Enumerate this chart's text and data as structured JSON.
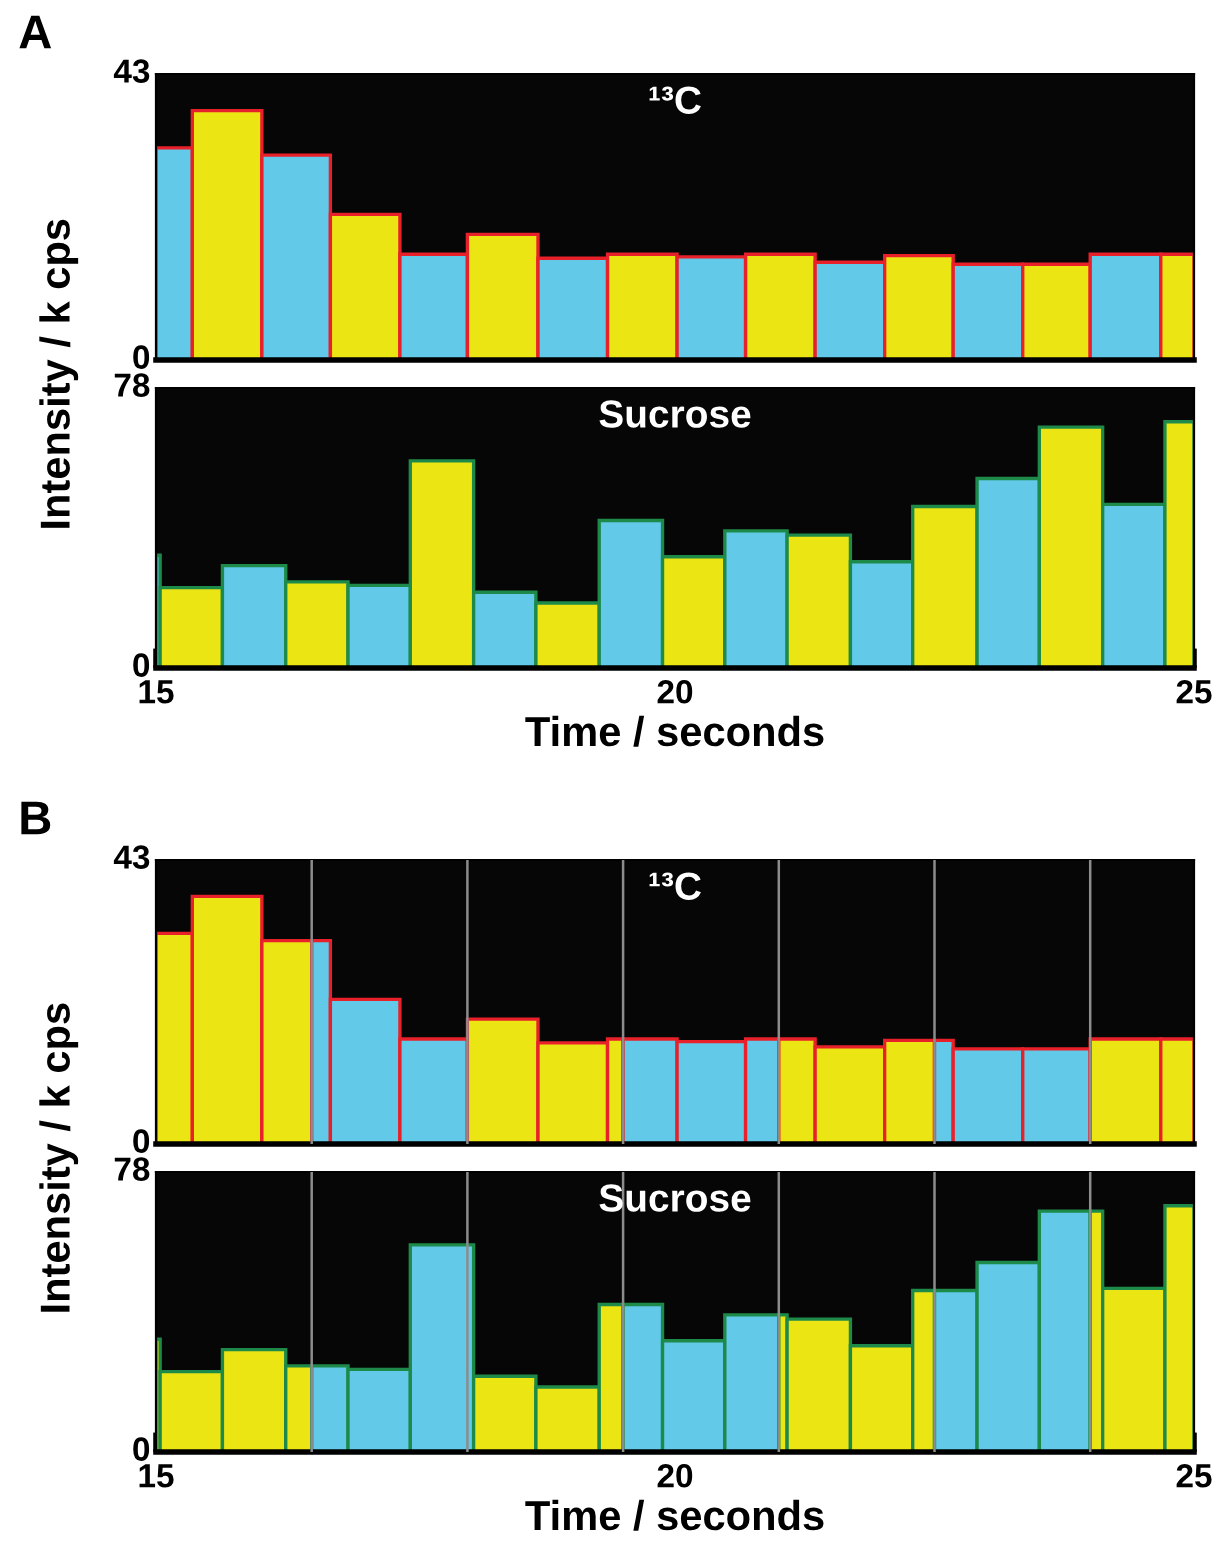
{
  "chart_data": [
    {
      "type": "histogram",
      "title": "A",
      "ylabel": "Intensity / k cps",
      "annotations": [
        "¹³C"
      ],
      "xlim": [
        15,
        25
      ],
      "ylim": [
        0,
        43
      ],
      "yticks": [
        0,
        43
      ],
      "tick_labels": "y",
      "bins": [
        15,
        15.35,
        16.02,
        16.68,
        17.35,
        18.0,
        18.68,
        19.35,
        20.02,
        20.68,
        21.35,
        22.02,
        22.68,
        23.35,
        24.0,
        24.68,
        25
      ],
      "values": [
        31.9,
        37.5,
        30.8,
        21.9,
        15.9,
        18.9,
        15.3,
        15.9,
        15.5,
        15.9,
        14.7,
        15.7,
        14.4,
        14.4,
        15.9,
        15.9
      ],
      "colors": [
        "#62c9e8",
        "#ece514",
        "#62c9e8",
        "#ece514",
        "#62c9e8",
        "#ece514",
        "#62c9e8",
        "#ece514",
        "#62c9e8",
        "#ece514",
        "#62c9e8",
        "#ece514",
        "#62c9e8",
        "#ece514",
        "#62c9e8",
        "#ece514"
      ]
    },
    {
      "type": "histogram",
      "xlabel": "Time / seconds",
      "annotations": [
        "Sucrose"
      ],
      "xlim": [
        15,
        25
      ],
      "xticks": [
        15,
        20,
        25
      ],
      "ylim": [
        0,
        78
      ],
      "yticks": [
        0,
        78
      ],
      "bins": [
        15,
        15.04,
        15.64,
        16.25,
        16.85,
        17.45,
        18.06,
        18.66,
        19.27,
        19.88,
        20.48,
        21.08,
        21.69,
        22.29,
        22.91,
        23.51,
        24.12,
        24.72,
        25
      ],
      "values": [
        31.4,
        22.4,
        28.5,
        24.0,
        23.0,
        57.7,
        21.1,
        18.1,
        41.1,
        31.0,
        38.2,
        37.0,
        29.6,
        45.0,
        52.8,
        67.1,
        45.6,
        68.6
      ],
      "colors": [
        "#62c9e8",
        "#ece514",
        "#62c9e8",
        "#ece514",
        "#62c9e8",
        "#ece514",
        "#62c9e8",
        "#ece514",
        "#62c9e8",
        "#ece514",
        "#62c9e8",
        "#ece514",
        "#62c9e8",
        "#ece514",
        "#62c9e8",
        "#ece514",
        "#62c9e8",
        "#ece514"
      ]
    },
    {
      "type": "histogram",
      "title": "B",
      "ylabel": "Intensity / k cps",
      "annotations": [
        "¹³C"
      ],
      "xlim": [
        15,
        25
      ],
      "ylim": [
        0,
        43
      ],
      "yticks": [
        0,
        43
      ],
      "tick_labels": "y",
      "bins": [
        15,
        15.35,
        16.02,
        16.5,
        16.68,
        17.35,
        18.0,
        18.68,
        19.35,
        19.5,
        20.02,
        20.68,
        21.0,
        21.35,
        22.02,
        22.5,
        22.68,
        23.35,
        24.0,
        24.68,
        25
      ],
      "values": [
        31.9,
        37.5,
        30.8,
        30.8,
        21.9,
        15.9,
        18.9,
        15.3,
        15.9,
        15.9,
        15.5,
        15.9,
        15.9,
        14.7,
        15.7,
        15.7,
        14.4,
        14.4,
        15.9,
        15.9
      ],
      "colors": [
        "#ece514",
        "#ece514",
        "#ece514",
        "#62c9e8",
        "#62c9e8",
        "#62c9e8",
        "#ece514",
        "#ece514",
        "#ece514",
        "#62c9e8",
        "#62c9e8",
        "#62c9e8",
        "#ece514",
        "#ece514",
        "#ece514",
        "#62c9e8",
        "#62c9e8",
        "#62c9e8",
        "#ece514",
        "#ece514"
      ],
      "ref_lines": [
        {
          "axis": "x",
          "value": 16.5,
          "color": "#8c8c8c"
        },
        {
          "axis": "x",
          "value": 18,
          "color": "#8c8c8c"
        },
        {
          "axis": "x",
          "value": 19.5,
          "color": "#8c8c8c"
        },
        {
          "axis": "x",
          "value": 21,
          "color": "#8c8c8c"
        },
        {
          "axis": "x",
          "value": 22.5,
          "color": "#8c8c8c"
        },
        {
          "axis": "x",
          "value": 24,
          "color": "#8c8c8c"
        }
      ]
    },
    {
      "type": "histogram",
      "xlabel": "Time / seconds",
      "annotations": [
        "Sucrose"
      ],
      "xlim": [
        15,
        25
      ],
      "xticks": [
        15,
        20,
        25
      ],
      "ylim": [
        0,
        78
      ],
      "yticks": [
        0,
        78
      ],
      "bins": [
        15,
        15.04,
        15.64,
        16.25,
        16.5,
        16.85,
        17.45,
        18.06,
        18.66,
        19.27,
        19.5,
        19.88,
        20.48,
        21.0,
        21.08,
        21.69,
        22.29,
        22.5,
        22.91,
        23.51,
        24.0,
        24.12,
        24.72,
        25
      ],
      "values": [
        31.4,
        22.4,
        28.5,
        24.0,
        24.0,
        23.0,
        57.7,
        21.1,
        18.1,
        41.1,
        41.1,
        31.0,
        38.2,
        38.2,
        37.0,
        29.6,
        45.0,
        45.0,
        52.8,
        67.1,
        67.1,
        45.6,
        68.6
      ],
      "colors": [
        "#ece514",
        "#ece514",
        "#ece514",
        "#ece514",
        "#62c9e8",
        "#62c9e8",
        "#62c9e8",
        "#ece514",
        "#ece514",
        "#ece514",
        "#62c9e8",
        "#62c9e8",
        "#62c9e8",
        "#ece514",
        "#ece514",
        "#ece514",
        "#ece514",
        "#62c9e8",
        "#62c9e8",
        "#62c9e8",
        "#ece514",
        "#ece514",
        "#ece514"
      ],
      "ref_lines": [
        {
          "axis": "x",
          "value": 16.5,
          "color": "#8c8c8c"
        },
        {
          "axis": "x",
          "value": 18,
          "color": "#8c8c8c"
        },
        {
          "axis": "x",
          "value": 19.5,
          "color": "#8c8c8c"
        },
        {
          "axis": "x",
          "value": 21,
          "color": "#8c8c8c"
        },
        {
          "axis": "x",
          "value": 22.5,
          "color": "#8c8c8c"
        },
        {
          "axis": "x",
          "value": 24,
          "color": "#8c8c8c"
        }
      ]
    }
  ]
}
